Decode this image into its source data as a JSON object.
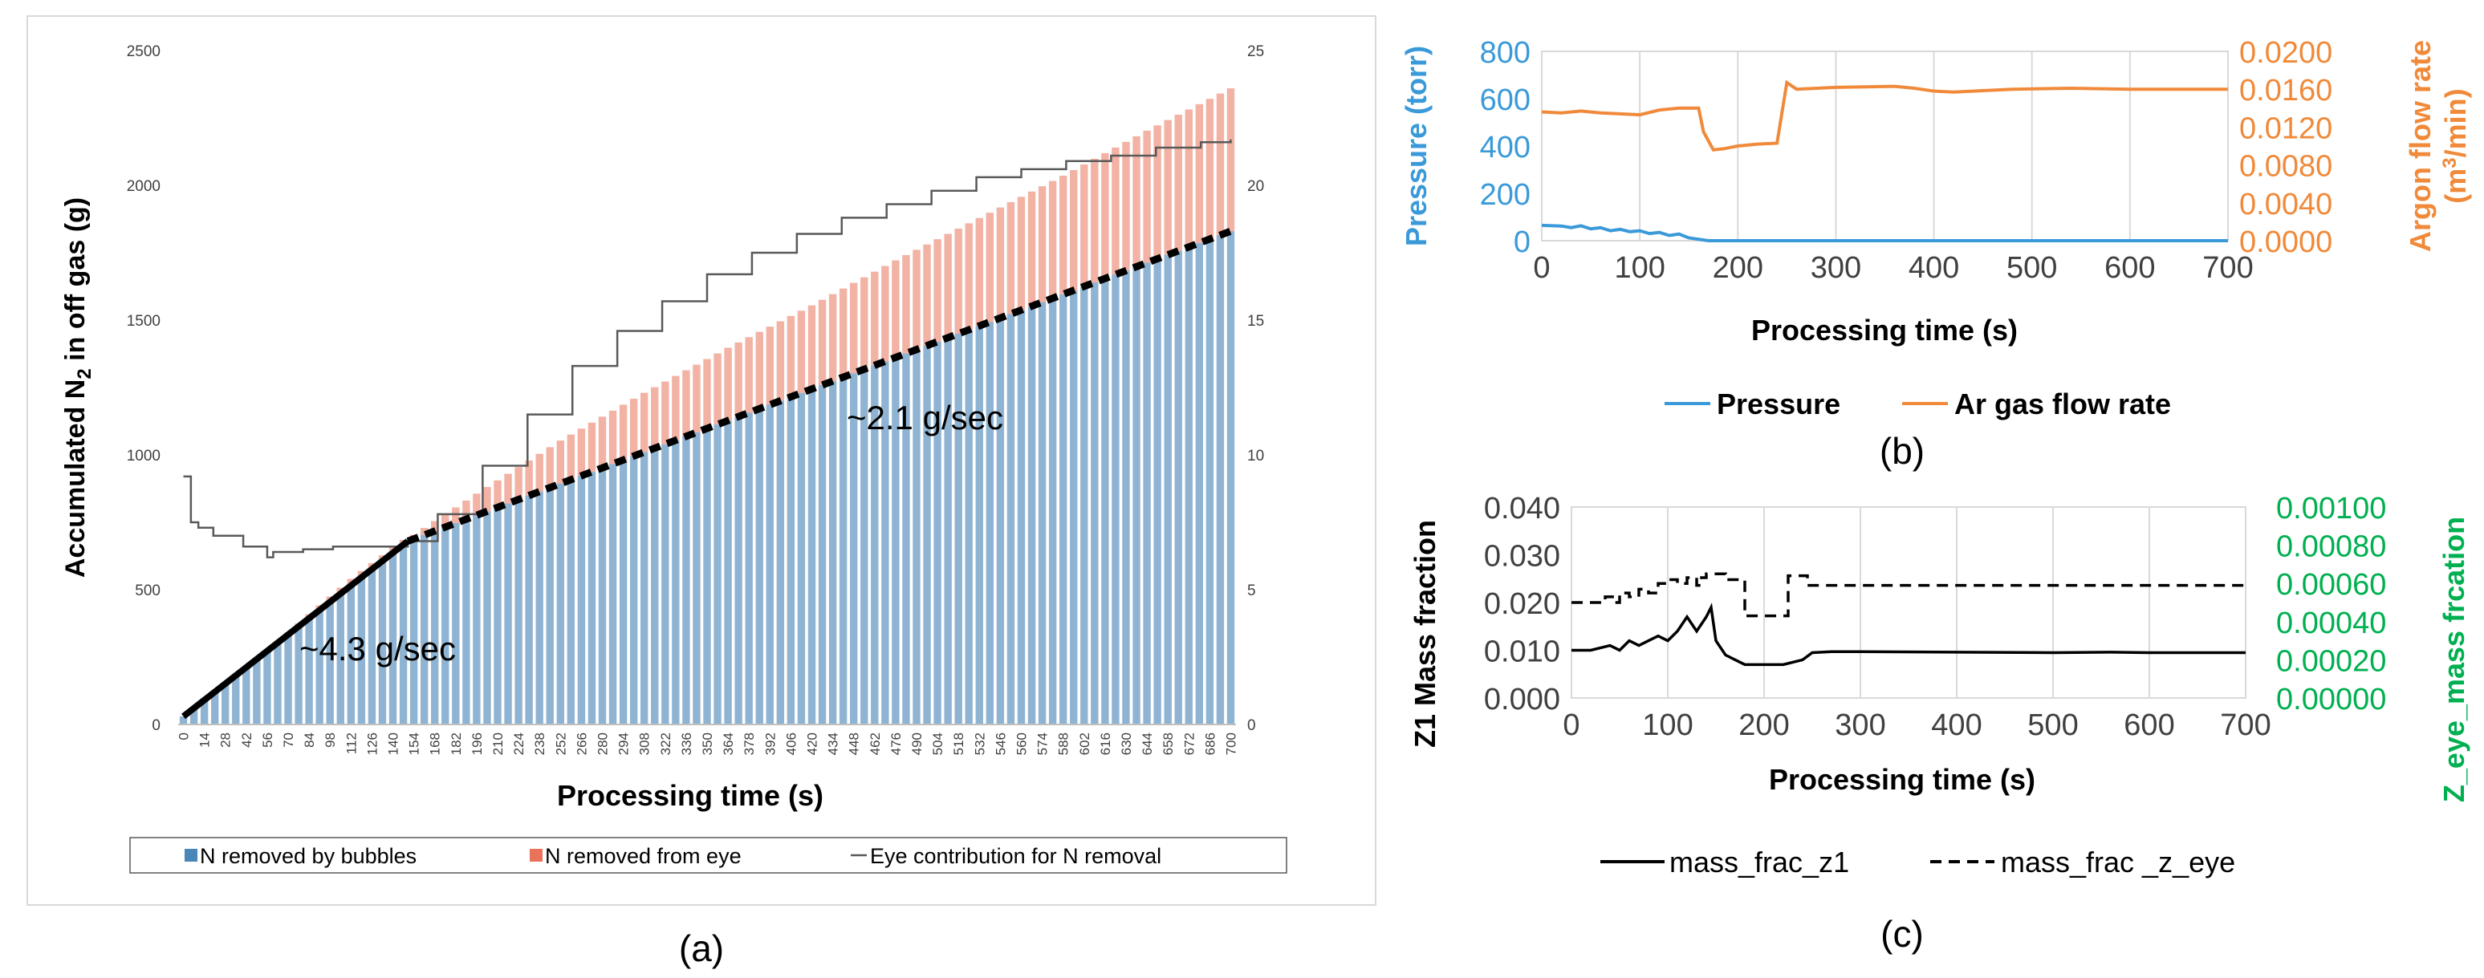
{
  "panels": {
    "a": {
      "caption": "(a)"
    },
    "b": {
      "caption": "(b)"
    },
    "c": {
      "caption": "(c)"
    }
  },
  "chart_data": [
    {
      "id": "a",
      "type": "bar",
      "stacked": true,
      "xlabel": "Processing time (s)",
      "ylabel_main": "Accumulated N",
      "ylabel_sub": "2",
      "ylabel_tail": " in off gas (g)",
      "ylim": [
        0,
        2500
      ],
      "yticks": [
        0,
        500,
        1000,
        1500,
        2000,
        2500
      ],
      "y2lim": [
        0,
        25
      ],
      "y2ticks": [
        0,
        5,
        10,
        15,
        20,
        25
      ],
      "x_range": [
        0,
        700
      ],
      "x_step": 7,
      "x_tick_step": 14,
      "series": [
        {
          "name": "N removed by bubbles",
          "color": "#4a86b8",
          "x": [
            0,
            150,
            700
          ],
          "values": [
            30,
            680,
            1830
          ]
        },
        {
          "name": "N removed from eye",
          "color": "#e8735a",
          "x": [
            0,
            56,
            84,
            112,
            140,
            154,
            196,
            252,
            308,
            364,
            420,
            476,
            532,
            588,
            644,
            700
          ],
          "values": [
            0,
            0,
            15,
            25,
            20,
            15,
            80,
            160,
            220,
            270,
            310,
            360,
            400,
            440,
            490,
            530
          ]
        },
        {
          "name": "Eye contribution for N removal",
          "color": "#595959",
          "axis": "right",
          "x": [
            0,
            5,
            10,
            20,
            40,
            56,
            60,
            80,
            100,
            130,
            150,
            170,
            200,
            230,
            260,
            290,
            320,
            350,
            380,
            410,
            440,
            470,
            500,
            530,
            560,
            590,
            620,
            650,
            680,
            700
          ],
          "values": [
            9.2,
            7.5,
            7.3,
            7.0,
            6.6,
            6.2,
            6.4,
            6.5,
            6.6,
            6.6,
            6.8,
            7.8,
            9.6,
            11.5,
            13.3,
            14.6,
            15.7,
            16.7,
            17.5,
            18.2,
            18.8,
            19.3,
            19.8,
            20.3,
            20.6,
            20.9,
            21.1,
            21.4,
            21.6,
            21.7
          ]
        }
      ],
      "fit_lines": [
        {
          "label": "~4.3 g/sec",
          "x": [
            0,
            150
          ],
          "y": [
            30,
            680
          ],
          "style": "solid",
          "color": "#000000"
        },
        {
          "label": "~2.1 g/sec",
          "x": [
            150,
            700
          ],
          "y": [
            680,
            1830
          ],
          "style": "dashed",
          "color": "#000000"
        }
      ]
    },
    {
      "id": "b",
      "type": "line",
      "xlabel": "Processing time (s)",
      "ylabel": "Pressure (torr)",
      "y2label_main": "Argon flow rate",
      "y2label_unit_pre": "(m",
      "y2label_sup": "3",
      "y2label_unit_post": "/min)",
      "xlim": [
        0,
        700
      ],
      "xticks": [
        0,
        100,
        200,
        300,
        400,
        500,
        600,
        700
      ],
      "ylim": [
        0,
        800
      ],
      "yticks": [
        0,
        200,
        400,
        600,
        800
      ],
      "y2lim": [
        0,
        0.02
      ],
      "y2ticks": [
        "0.0000",
        "0.0040",
        "0.0080",
        "0.0120",
        "0.0160",
        "0.0200"
      ],
      "series": [
        {
          "name": "Pressure",
          "color": "#3a9ad9",
          "axis": "left",
          "x": [
            0,
            20,
            30,
            40,
            50,
            60,
            70,
            80,
            90,
            100,
            110,
            120,
            130,
            140,
            150,
            165,
            170,
            700
          ],
          "values": [
            65,
            62,
            55,
            63,
            50,
            55,
            42,
            48,
            38,
            42,
            30,
            35,
            22,
            28,
            12,
            3,
            0,
            0
          ]
        },
        {
          "name": "Ar gas flow rate",
          "color": "#f08a3a",
          "axis": "right",
          "x": [
            0,
            20,
            40,
            60,
            80,
            100,
            120,
            140,
            160,
            165,
            175,
            185,
            200,
            220,
            240,
            250,
            260,
            300,
            360,
            380,
            400,
            420,
            480,
            540,
            600,
            700
          ],
          "values": [
            0.0136,
            0.0135,
            0.0137,
            0.0135,
            0.0134,
            0.0133,
            0.0138,
            0.014,
            0.014,
            0.0115,
            0.0096,
            0.0097,
            0.01,
            0.0102,
            0.0103,
            0.0167,
            0.016,
            0.0162,
            0.0163,
            0.0161,
            0.0158,
            0.0157,
            0.016,
            0.0161,
            0.016,
            0.016
          ]
        }
      ]
    },
    {
      "id": "c",
      "type": "line",
      "xlabel": "Processing time (s)",
      "ylabel": "Z1 Mass fraction",
      "y2label": "Z_eye_mass frcation",
      "xlim": [
        0,
        700
      ],
      "xticks": [
        0,
        100,
        200,
        300,
        400,
        500,
        600,
        700
      ],
      "ylim": [
        0,
        0.04
      ],
      "yticks": [
        "0.000",
        "0.010",
        "0.020",
        "0.030",
        "0.040"
      ],
      "y2lim": [
        0,
        0.001
      ],
      "y2ticks": [
        "0.00000",
        "0.00020",
        "0.00040",
        "0.00060",
        "0.00080",
        "0.00100"
      ],
      "series": [
        {
          "name": "mass_frac_z1",
          "color": "#000000",
          "style": "solid",
          "axis": "left",
          "x": [
            0,
            20,
            40,
            50,
            60,
            70,
            80,
            90,
            100,
            110,
            120,
            130,
            140,
            145,
            150,
            160,
            170,
            180,
            200,
            220,
            240,
            250,
            270,
            300,
            400,
            500,
            560,
            600,
            700
          ],
          "values": [
            0.01,
            0.01,
            0.011,
            0.01,
            0.012,
            0.011,
            0.012,
            0.013,
            0.012,
            0.014,
            0.017,
            0.014,
            0.017,
            0.019,
            0.012,
            0.009,
            0.008,
            0.007,
            0.007,
            0.007,
            0.008,
            0.0095,
            0.0097,
            0.0097,
            0.0096,
            0.0095,
            0.0096,
            0.0095,
            0.0095
          ]
        },
        {
          "name": "mass_frac _z_eye",
          "color": "#000000",
          "style": "dashed",
          "axis": "right",
          "x": [
            0,
            30,
            35,
            45,
            50,
            60,
            70,
            80,
            90,
            100,
            110,
            120,
            130,
            135,
            140,
            155,
            160,
            175,
            180,
            200,
            220,
            225,
            240,
            245,
            700
          ],
          "values": [
            0.0005,
            0.0005,
            0.00053,
            0.0005,
            0.00055,
            0.00053,
            0.00057,
            0.00055,
            0.0006,
            0.00062,
            0.0006,
            0.00063,
            0.00059,
            0.00063,
            0.00065,
            0.00065,
            0.00062,
            0.00062,
            0.00043,
            0.00043,
            0.00043,
            0.00064,
            0.00064,
            0.00059,
            0.00059
          ]
        }
      ]
    }
  ]
}
